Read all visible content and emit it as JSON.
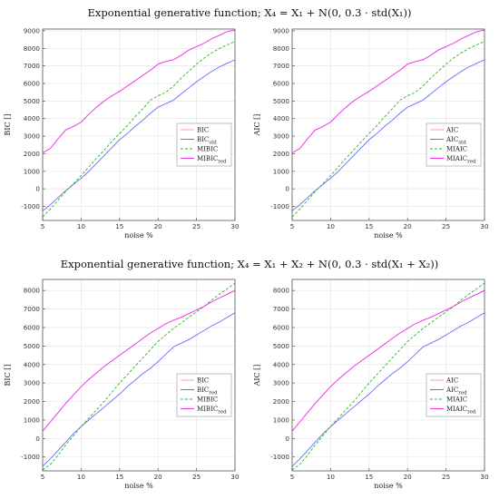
{
  "titles": {
    "top": "Exponential generative function; X₄ = X₁ + N(0, 0.3 · std(X₁))",
    "bottom": "Exponential generative function; X₄ = X₁ + X₂ + N(0, 0.3 · std(X₁ + X₂))"
  },
  "colors": {
    "series_1": "#ff99cc",
    "series_2": "#6b6bff",
    "series_3": "#22bb22",
    "series_4": "#ee33ee"
  },
  "chart_data": [
    {
      "type": "line",
      "xlabel": "noise %",
      "ylabel": "BIC []",
      "xlim": [
        5,
        30
      ],
      "ylim": [
        -1800,
        9100
      ],
      "xticks": [
        5,
        10,
        15,
        20,
        25,
        30
      ],
      "yticks": [
        -1000,
        0,
        1000,
        2000,
        3000,
        4000,
        5000,
        6000,
        7000,
        8000,
        9000
      ],
      "grid": true,
      "legend_position": "center-right",
      "series": [
        {
          "name": "BIC",
          "style": "solid",
          "x": [
            5,
            6,
            7,
            8,
            9,
            10,
            11,
            12,
            13,
            14,
            15,
            16,
            17,
            18,
            19,
            20,
            21,
            22,
            23,
            24,
            25,
            26,
            27,
            28,
            29,
            30
          ],
          "y": [
            2050,
            2300,
            2850,
            3350,
            3550,
            3800,
            4250,
            4650,
            5000,
            5300,
            5550,
            5850,
            6150,
            6450,
            6750,
            7100,
            7250,
            7350,
            7600,
            7900,
            8100,
            8300,
            8550,
            8750,
            8950,
            9050
          ]
        },
        {
          "name": "BIC_std",
          "style": "solid",
          "x": [
            5,
            6,
            7,
            8,
            9,
            10,
            11,
            12,
            13,
            14,
            15,
            16,
            17,
            18,
            19,
            20,
            21,
            22,
            23,
            24,
            25,
            26,
            27,
            28,
            29,
            30
          ],
          "y": [
            -1250,
            -900,
            -500,
            -100,
            250,
            600,
            1000,
            1450,
            1900,
            2350,
            2800,
            3150,
            3550,
            3900,
            4300,
            4650,
            4850,
            5050,
            5400,
            5750,
            6100,
            6400,
            6700,
            6950,
            7150,
            7350
          ]
        },
        {
          "name": "MIBIC",
          "style": "dashed",
          "x": [
            5,
            6,
            7,
            8,
            9,
            10,
            11,
            12,
            13,
            14,
            15,
            16,
            17,
            18,
            19,
            20,
            21,
            22,
            23,
            24,
            25,
            26,
            27,
            28,
            29,
            30
          ],
          "y": [
            -1600,
            -1150,
            -650,
            -150,
            300,
            750,
            1250,
            1750,
            2200,
            2700,
            3150,
            3600,
            4100,
            4550,
            5050,
            5300,
            5500,
            5850,
            6300,
            6700,
            7100,
            7450,
            7750,
            8000,
            8200,
            8400
          ]
        },
        {
          "name": "MIBIC_red",
          "style": "solid",
          "x": [
            5,
            6,
            7,
            8,
            9,
            10,
            11,
            12,
            13,
            14,
            15,
            16,
            17,
            18,
            19,
            20,
            21,
            22,
            23,
            24,
            25,
            26,
            27,
            28,
            29,
            30
          ],
          "y": [
            2050,
            2300,
            2850,
            3350,
            3550,
            3800,
            4250,
            4650,
            5000,
            5300,
            5550,
            5850,
            6150,
            6450,
            6750,
            7100,
            7250,
            7350,
            7600,
            7900,
            8100,
            8300,
            8550,
            8750,
            8950,
            9050
          ]
        }
      ]
    },
    {
      "type": "line",
      "xlabel": "noise %",
      "ylabel": "AIC []",
      "xlim": [
        5,
        30
      ],
      "ylim": [
        -1800,
        9100
      ],
      "xticks": [
        5,
        10,
        15,
        20,
        25,
        30
      ],
      "yticks": [
        -1000,
        0,
        1000,
        2000,
        3000,
        4000,
        5000,
        6000,
        7000,
        8000,
        9000
      ],
      "grid": true,
      "legend_position": "center-right",
      "series": [
        {
          "name": "AIC",
          "style": "solid",
          "x": [
            5,
            6,
            7,
            8,
            9,
            10,
            11,
            12,
            13,
            14,
            15,
            16,
            17,
            18,
            19,
            20,
            21,
            22,
            23,
            24,
            25,
            26,
            27,
            28,
            29,
            30
          ],
          "y": [
            2050,
            2300,
            2850,
            3350,
            3550,
            3800,
            4250,
            4650,
            5000,
            5300,
            5550,
            5850,
            6150,
            6450,
            6750,
            7100,
            7250,
            7350,
            7600,
            7900,
            8100,
            8300,
            8550,
            8750,
            8950,
            9050
          ]
        },
        {
          "name": "AIC_std",
          "style": "solid",
          "x": [
            5,
            6,
            7,
            8,
            9,
            10,
            11,
            12,
            13,
            14,
            15,
            16,
            17,
            18,
            19,
            20,
            21,
            22,
            23,
            24,
            25,
            26,
            27,
            28,
            29,
            30
          ],
          "y": [
            -1250,
            -900,
            -500,
            -100,
            250,
            600,
            1000,
            1450,
            1900,
            2350,
            2800,
            3150,
            3550,
            3900,
            4300,
            4650,
            4850,
            5050,
            5400,
            5750,
            6100,
            6400,
            6700,
            6950,
            7150,
            7350
          ]
        },
        {
          "name": "MIAIC",
          "style": "dashed",
          "x": [
            5,
            6,
            7,
            8,
            9,
            10,
            11,
            12,
            13,
            14,
            15,
            16,
            17,
            18,
            19,
            20,
            21,
            22,
            23,
            24,
            25,
            26,
            27,
            28,
            29,
            30
          ],
          "y": [
            -1600,
            -1150,
            -650,
            -150,
            300,
            750,
            1250,
            1750,
            2200,
            2700,
            3150,
            3600,
            4100,
            4550,
            5050,
            5300,
            5500,
            5850,
            6300,
            6700,
            7100,
            7450,
            7750,
            8000,
            8200,
            8400
          ]
        },
        {
          "name": "MIAIC_red",
          "style": "solid",
          "x": [
            5,
            6,
            7,
            8,
            9,
            10,
            11,
            12,
            13,
            14,
            15,
            16,
            17,
            18,
            19,
            20,
            21,
            22,
            23,
            24,
            25,
            26,
            27,
            28,
            29,
            30
          ],
          "y": [
            2050,
            2300,
            2850,
            3350,
            3550,
            3800,
            4250,
            4650,
            5000,
            5300,
            5550,
            5850,
            6150,
            6450,
            6750,
            7100,
            7250,
            7350,
            7600,
            7900,
            8100,
            8300,
            8550,
            8750,
            8950,
            9050
          ]
        }
      ]
    },
    {
      "type": "line",
      "xlabel": "noise %",
      "ylabel": "BIC []",
      "xlim": [
        5,
        30
      ],
      "ylim": [
        -1750,
        8600
      ],
      "xticks": [
        5,
        10,
        15,
        20,
        25,
        30
      ],
      "yticks": [
        -1000,
        0,
        1000,
        2000,
        3000,
        4000,
        5000,
        6000,
        7000,
        8000
      ],
      "grid": true,
      "legend_position": "center-right",
      "series": [
        {
          "name": "BIC",
          "style": "solid",
          "x": [
            5,
            6,
            7,
            8,
            9,
            10,
            11,
            12,
            13,
            14,
            15,
            16,
            17,
            18,
            19,
            20,
            21,
            22,
            23,
            24,
            25,
            26,
            27,
            28,
            29,
            30
          ],
          "y": [
            400,
            900,
            1400,
            1900,
            2350,
            2800,
            3200,
            3550,
            3900,
            4200,
            4500,
            4800,
            5100,
            5400,
            5700,
            5950,
            6200,
            6400,
            6550,
            6750,
            6950,
            7150,
            7400,
            7600,
            7800,
            8000
          ]
        },
        {
          "name": "BIC_red",
          "style": "solid",
          "x": [
            5,
            6,
            7,
            8,
            9,
            10,
            11,
            12,
            13,
            14,
            15,
            16,
            17,
            18,
            19,
            20,
            21,
            22,
            23,
            24,
            25,
            26,
            27,
            28,
            29,
            30
          ],
          "y": [
            -1500,
            -1100,
            -650,
            -200,
            250,
            650,
            1000,
            1350,
            1700,
            2050,
            2400,
            2800,
            3150,
            3500,
            3800,
            4150,
            4550,
            4950,
            5150,
            5350,
            5600,
            5850,
            6100,
            6300,
            6550,
            6800
          ]
        },
        {
          "name": "MIBIC",
          "style": "dashed",
          "x": [
            5,
            6,
            7,
            8,
            9,
            10,
            11,
            12,
            13,
            14,
            15,
            16,
            17,
            18,
            19,
            20,
            21,
            22,
            23,
            24,
            25,
            26,
            27,
            28,
            29,
            30
          ],
          "y": [
            -1700,
            -1400,
            -900,
            -350,
            150,
            650,
            1100,
            1550,
            2000,
            2500,
            3000,
            3450,
            3900,
            4350,
            4800,
            5250,
            5600,
            5950,
            6250,
            6550,
            6850,
            7150,
            7500,
            7800,
            8100,
            8400
          ]
        },
        {
          "name": "MIBIC_red",
          "style": "solid",
          "x": [
            5,
            6,
            7,
            8,
            9,
            10,
            11,
            12,
            13,
            14,
            15,
            16,
            17,
            18,
            19,
            20,
            21,
            22,
            23,
            24,
            25,
            26,
            27,
            28,
            29,
            30
          ],
          "y": [
            400,
            900,
            1400,
            1900,
            2350,
            2800,
            3200,
            3550,
            3900,
            4200,
            4500,
            4800,
            5100,
            5400,
            5700,
            5950,
            6200,
            6400,
            6550,
            6750,
            6950,
            7150,
            7400,
            7600,
            7800,
            8000
          ]
        }
      ]
    },
    {
      "type": "line",
      "xlabel": "noise %",
      "ylabel": "AIC []",
      "xlim": [
        5,
        30
      ],
      "ylim": [
        -1750,
        8600
      ],
      "xticks": [
        5,
        10,
        15,
        20,
        25,
        30
      ],
      "yticks": [
        -1000,
        0,
        1000,
        2000,
        3000,
        4000,
        5000,
        6000,
        7000,
        8000
      ],
      "grid": true,
      "legend_position": "center-right",
      "series": [
        {
          "name": "AIC",
          "style": "solid",
          "x": [
            5,
            6,
            7,
            8,
            9,
            10,
            11,
            12,
            13,
            14,
            15,
            16,
            17,
            18,
            19,
            20,
            21,
            22,
            23,
            24,
            25,
            26,
            27,
            28,
            29,
            30
          ],
          "y": [
            400,
            900,
            1400,
            1900,
            2350,
            2800,
            3200,
            3550,
            3900,
            4200,
            4500,
            4800,
            5100,
            5400,
            5700,
            5950,
            6200,
            6400,
            6550,
            6750,
            6950,
            7150,
            7400,
            7600,
            7800,
            8000
          ]
        },
        {
          "name": "AIC_red",
          "style": "solid",
          "x": [
            5,
            6,
            7,
            8,
            9,
            10,
            11,
            12,
            13,
            14,
            15,
            16,
            17,
            18,
            19,
            20,
            21,
            22,
            23,
            24,
            25,
            26,
            27,
            28,
            29,
            30
          ],
          "y": [
            -1500,
            -1100,
            -650,
            -200,
            250,
            650,
            1000,
            1350,
            1700,
            2050,
            2400,
            2800,
            3150,
            3500,
            3800,
            4150,
            4550,
            4950,
            5150,
            5350,
            5600,
            5850,
            6100,
            6300,
            6550,
            6800
          ]
        },
        {
          "name": "MIAIC",
          "style": "dashed",
          "x": [
            5,
            6,
            7,
            8,
            9,
            10,
            11,
            12,
            13,
            14,
            15,
            16,
            17,
            18,
            19,
            20,
            21,
            22,
            23,
            24,
            25,
            26,
            27,
            28,
            29,
            30
          ],
          "y": [
            -1700,
            -1400,
            -900,
            -350,
            150,
            650,
            1100,
            1550,
            2000,
            2500,
            3000,
            3450,
            3900,
            4350,
            4800,
            5250,
            5600,
            5950,
            6250,
            6550,
            6850,
            7150,
            7500,
            7800,
            8100,
            8400
          ]
        },
        {
          "name": "MIAIC_red",
          "style": "solid",
          "x": [
            5,
            6,
            7,
            8,
            9,
            10,
            11,
            12,
            13,
            14,
            15,
            16,
            17,
            18,
            19,
            20,
            21,
            22,
            23,
            24,
            25,
            26,
            27,
            28,
            29,
            30
          ],
          "y": [
            400,
            900,
            1400,
            1900,
            2350,
            2800,
            3200,
            3550,
            3900,
            4200,
            4500,
            4800,
            5100,
            5400,
            5700,
            5950,
            6200,
            6400,
            6550,
            6750,
            6950,
            7150,
            7400,
            7600,
            7800,
            8000
          ]
        }
      ]
    }
  ]
}
